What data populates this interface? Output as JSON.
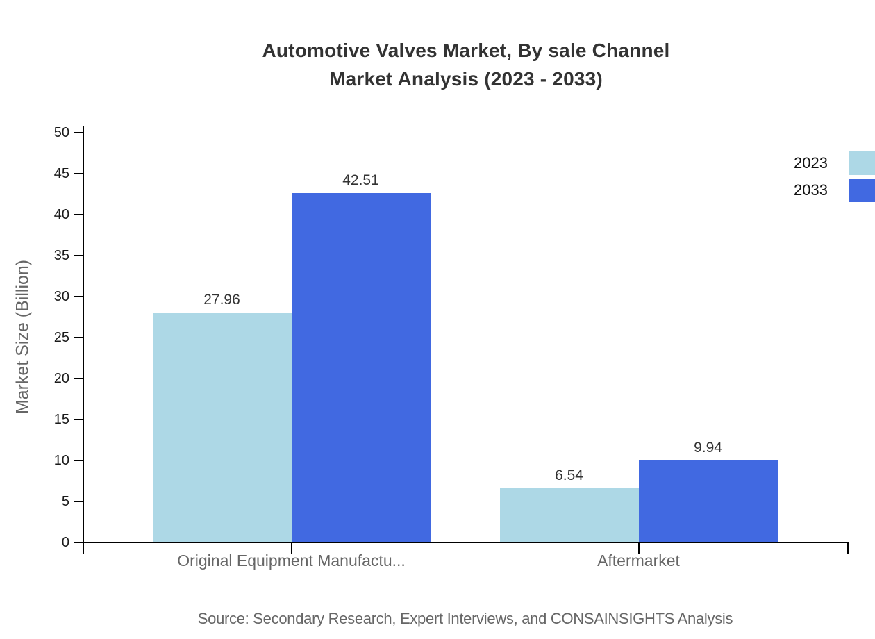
{
  "title": {
    "line1": "Automotive Valves Market, By sale Channel",
    "line2": "Market Analysis (2023 - 2033)"
  },
  "y_axis": {
    "label": "Market Size (Billion)",
    "ticks": [
      0,
      5,
      10,
      15,
      20,
      25,
      30,
      35,
      40,
      45,
      50
    ]
  },
  "source_note": "Source: Secondary Research, Expert Interviews, and CONSAINSIGHTS Analysis",
  "chart_data": {
    "type": "bar",
    "title": "Automotive Valves Market, By sale Channel Market Analysis (2023 - 2033)",
    "categories": [
      "Original Equipment Manufactu...",
      "Aftermarket"
    ],
    "series": [
      {
        "name": "2023",
        "color": "#ADD8E6",
        "values": [
          27.96,
          6.54
        ]
      },
      {
        "name": "2033",
        "color": "#4169E1",
        "values": [
          42.51,
          9.94
        ]
      }
    ],
    "xlabel": "",
    "ylabel": "Market Size (Billion)",
    "ylim": [
      0,
      50
    ],
    "ytick_step": 5,
    "grid": false,
    "value_labels": true,
    "legend_position": "top-right"
  },
  "colors": {
    "series_2023": "#ADD8E6",
    "series_2033": "#4169E1",
    "axis": "#000000",
    "title_text": "#333333",
    "muted_text": "#666666",
    "tick_text": "#1a1a1a",
    "value_text": "#333333"
  }
}
